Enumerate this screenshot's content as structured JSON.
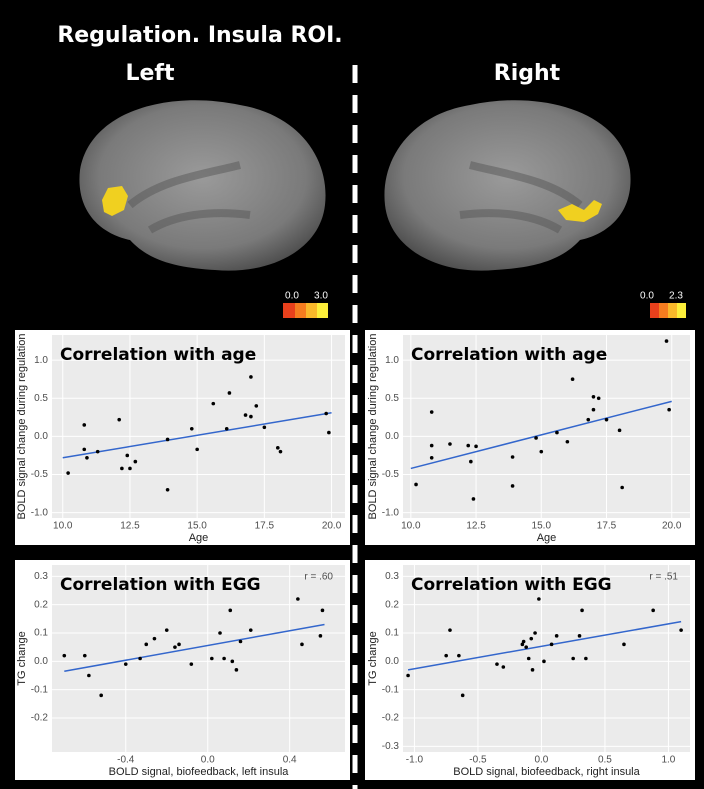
{
  "header": {
    "title": "Regulation.  Insula ROI.",
    "left": "Left",
    "right": "Right"
  },
  "colorbars": [
    {
      "min": "0.0",
      "max": "3.0"
    },
    {
      "min": "0.0",
      "max": "2.3"
    }
  ],
  "chart_data": [
    {
      "type": "scatter",
      "title": "Correlation with age",
      "xlabel": "Age",
      "ylabel": "BOLD signal change during regulation",
      "x": [
        10.2,
        10.8,
        10.8,
        10.9,
        11.3,
        12.1,
        12.2,
        12.4,
        12.5,
        12.7,
        13.9,
        13.9,
        14.8,
        15.0,
        15.6,
        16.1,
        16.2,
        16.8,
        17.0,
        17.0,
        17.2,
        17.5,
        18.0,
        18.1,
        19.8,
        19.9
      ],
      "values": [
        -0.48,
        0.15,
        -0.17,
        -0.28,
        -0.2,
        0.22,
        -0.42,
        -0.25,
        -0.42,
        -0.33,
        -0.04,
        -0.7,
        0.1,
        -0.17,
        0.43,
        0.1,
        0.57,
        0.28,
        0.26,
        0.78,
        0.4,
        0.12,
        -0.15,
        -0.2,
        0.3,
        0.05
      ],
      "fit_x": [
        10,
        20
      ],
      "fit_y": [
        -0.28,
        0.31
      ],
      "point_color": "#000000",
      "fit_color": "#3366cc",
      "xlim": [
        9.6,
        20.5
      ],
      "ylim": [
        -1.07,
        1.33
      ],
      "xticks": [
        {
          "value": 10,
          "label": "10.0"
        },
        12.5,
        {
          "value": 15,
          "label": "15.0"
        },
        17.5,
        {
          "value": 20,
          "label": "20.0"
        }
      ],
      "yticks": [
        {
          "value": 1,
          "label": "1.0"
        },
        0.5,
        {
          "value": 0,
          "label": "0.0"
        },
        -0.5,
        {
          "value": -1,
          "label": "-1.0"
        }
      ],
      "grid": true
    },
    {
      "type": "scatter",
      "title": "Correlation with age",
      "xlabel": "Age",
      "ylabel": "BOLD signal change during regulation",
      "x": [
        10.2,
        10.8,
        10.8,
        10.8,
        11.5,
        12.2,
        12.3,
        12.4,
        12.5,
        13.9,
        13.9,
        14.8,
        15.0,
        15.6,
        16.0,
        16.2,
        16.8,
        17.0,
        17.0,
        17.2,
        17.5,
        18.0,
        18.1,
        19.8,
        19.9
      ],
      "values": [
        -0.63,
        0.32,
        -0.12,
        -0.28,
        -0.1,
        -0.12,
        -0.33,
        -0.82,
        -0.13,
        -0.27,
        -0.65,
        -0.02,
        -0.2,
        0.05,
        -0.07,
        0.75,
        0.22,
        0.35,
        0.52,
        0.5,
        0.22,
        0.08,
        -0.67,
        1.25,
        0.35
      ],
      "fit_x": [
        10,
        20
      ],
      "fit_y": [
        -0.42,
        0.46
      ],
      "point_color": "#000000",
      "fit_color": "#3366cc",
      "xlim": [
        9.7,
        20.7
      ],
      "ylim": [
        -1.07,
        1.33
      ],
      "xticks": [
        {
          "value": 10,
          "label": "10.0"
        },
        12.5,
        {
          "value": 15,
          "label": "15.0"
        },
        17.5,
        {
          "value": 20,
          "label": "20.0"
        }
      ],
      "yticks": [
        {
          "value": 1,
          "label": "1.0"
        },
        0.5,
        {
          "value": 0,
          "label": "0.0"
        },
        -0.5,
        {
          "value": -1,
          "label": "-1.0"
        }
      ],
      "grid": true
    },
    {
      "type": "scatter",
      "title": "Correlation with EGG",
      "annotation": "r = .60",
      "xlabel": "BOLD signal, biofeedback, left insula",
      "ylabel": "TG change",
      "x": [
        -0.7,
        -0.6,
        -0.58,
        -0.52,
        -0.4,
        -0.33,
        -0.3,
        -0.26,
        -0.2,
        -0.16,
        -0.14,
        -0.08,
        0.02,
        0.06,
        0.08,
        0.11,
        0.12,
        0.14,
        0.16,
        0.21,
        0.44,
        0.46,
        0.55,
        0.56
      ],
      "values": [
        0.02,
        0.02,
        -0.05,
        -0.12,
        -0.01,
        0.01,
        0.06,
        0.08,
        0.11,
        0.05,
        0.06,
        -0.01,
        0.01,
        0.1,
        0.01,
        0.18,
        0.0,
        -0.03,
        0.07,
        0.11,
        0.22,
        0.06,
        0.09,
        0.18
      ],
      "fit_x": [
        -0.7,
        0.57
      ],
      "fit_y": [
        -0.035,
        0.13
      ],
      "point_color": "#000000",
      "fit_color": "#3366cc",
      "xlim": [
        -0.76,
        0.67
      ],
      "ylim": [
        -0.32,
        0.34
      ],
      "xticks": [
        -0.4,
        {
          "value": 0,
          "label": "0.0"
        },
        0.4
      ],
      "yticks": [
        0.3,
        0.2,
        0.1,
        {
          "value": 0,
          "label": "0.0"
        },
        -0.1,
        -0.2
      ],
      "grid": true
    },
    {
      "type": "scatter",
      "title": "Correlation with EGG",
      "annotation": "r = .51",
      "xlabel": "BOLD signal, biofeedback, right insula",
      "ylabel": "TG change",
      "x": [
        -1.05,
        -0.75,
        -0.72,
        -0.65,
        -0.62,
        -0.35,
        -0.3,
        -0.15,
        -0.14,
        -0.12,
        -0.1,
        -0.08,
        -0.07,
        -0.05,
        -0.02,
        0.02,
        0.08,
        0.12,
        0.25,
        0.3,
        0.32,
        0.35,
        0.65,
        0.88,
        1.1
      ],
      "values": [
        -0.05,
        0.02,
        0.11,
        0.02,
        -0.12,
        -0.01,
        -0.02,
        0.06,
        0.07,
        0.05,
        0.01,
        0.08,
        -0.03,
        0.1,
        0.22,
        0.0,
        0.06,
        0.09,
        0.01,
        0.09,
        0.18,
        0.01,
        0.06,
        0.18,
        0.11
      ],
      "fit_x": [
        -1.05,
        1.1
      ],
      "fit_y": [
        -0.03,
        0.14
      ],
      "point_color": "#000000",
      "fit_color": "#3366cc",
      "xlim": [
        -1.09,
        1.17
      ],
      "ylim": [
        -0.32,
        0.34
      ],
      "xticks": [
        {
          "value": -1,
          "label": "-1.0"
        },
        -0.5,
        {
          "value": 0,
          "label": "0.0"
        },
        0.5,
        {
          "value": 1,
          "label": "1.0"
        }
      ],
      "yticks": [
        0.3,
        0.2,
        0.1,
        {
          "value": 0,
          "label": "0.0"
        },
        -0.1,
        -0.2,
        -0.3
      ],
      "grid": true
    }
  ]
}
